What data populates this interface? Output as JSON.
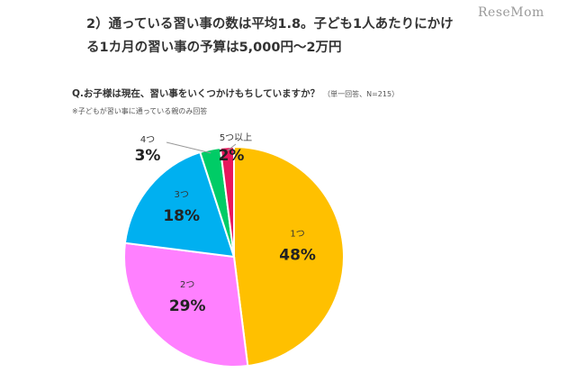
{
  "header": {
    "line1": "2）通っている習い事の数は平均1.8。子ども1人あたりにかけ",
    "line2": "る1カ月の習い事の予算は5,000円～2万円"
  },
  "brand": {
    "logo_text": "ReseMom"
  },
  "question": {
    "text": "Q.お子様は現在、習い事をいくつかけもちしていますか？",
    "meta": "（単一回答、N=215）"
  },
  "note": "※子どもが習い事に通っている親のみ回答",
  "chart_data": {
    "type": "pie",
    "title": "",
    "start": "top",
    "direction": "clockwise",
    "slices": [
      {
        "label": "1つ",
        "value": 48,
        "display": "48%",
        "color": "#FFC000"
      },
      {
        "label": "2つ",
        "value": 29,
        "display": "29%",
        "color": "#FF80FF"
      },
      {
        "label": "3つ",
        "value": 18,
        "display": "18%",
        "color": "#00B0F0"
      },
      {
        "label": "4つ",
        "value": 3,
        "display": "3%",
        "color": "#00CC66"
      },
      {
        "label": "5つ以上",
        "value": 2,
        "display": "2%",
        "color": "#E8175D"
      }
    ]
  }
}
